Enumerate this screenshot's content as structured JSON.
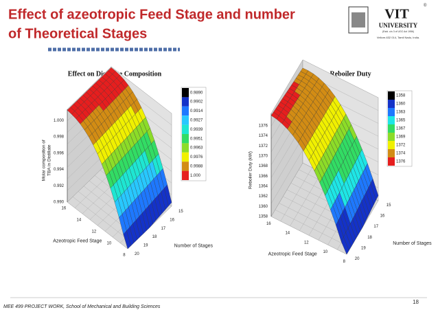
{
  "header": {
    "title_lines": [
      "Effect of azeotropic Feed Stage and number",
      "of Theoretical Stages"
    ],
    "logo": {
      "name": "VIT",
      "subtitle": "UNIVERSITY",
      "established": "(Estd. u/s 3 of UGC Act 1956)",
      "address": "Vellore-632 014, Tamil Nadu, India."
    }
  },
  "plots": [
    {
      "title": "Effect on Distillate Composition",
      "z_axis_label_lines": [
        "Molar composition of",
        "TBA in Distillate"
      ],
      "z_ticks": [
        "1.000",
        "0.998",
        "0.996",
        "0.994",
        "0.992",
        "0.990"
      ],
      "feed_axis_label": "Azeotropic Feed Stage",
      "feed_ticks": [
        "16",
        "14",
        "12",
        "10",
        "8"
      ],
      "stages_axis_label": "Number of Stages",
      "stages_ticks": [
        "15",
        "16",
        "17",
        "18",
        "19",
        "20"
      ],
      "legend": [
        {
          "label": "0.9890",
          "color": "#000000"
        },
        {
          "label": "0.9902",
          "color": "#1432c8"
        },
        {
          "label": "0.9914",
          "color": "#1e78ff"
        },
        {
          "label": "0.9927",
          "color": "#28c8ff"
        },
        {
          "label": "0.9939",
          "color": "#1ee6d2"
        },
        {
          "label": "0.9951",
          "color": "#32dc64"
        },
        {
          "label": "0.9963",
          "color": "#8cdc28"
        },
        {
          "label": "0.9976",
          "color": "#f0f000"
        },
        {
          "label": "0.9988",
          "color": "#d28c14"
        },
        {
          "label": "1.000",
          "color": "#e61e1e"
        }
      ]
    },
    {
      "title": "Effect on Reboiler Duty",
      "z_axis_label_lines": [
        "Reboiler Duty (kW)"
      ],
      "z_ticks": [
        "1376",
        "1374",
        "1372",
        "1370",
        "1368",
        "1366",
        "1364",
        "1362",
        "1360",
        "1358"
      ],
      "feed_axis_label": "Azeotropic Feed Stage",
      "feed_ticks": [
        "16",
        "14",
        "12",
        "10",
        "8"
      ],
      "stages_axis_label": "Number of Stages",
      "stages_ticks": [
        "15",
        "16",
        "17",
        "18",
        "19",
        "20"
      ],
      "legend": [
        {
          "label": "1358",
          "color": "#000000"
        },
        {
          "label": "1360",
          "color": "#1432c8"
        },
        {
          "label": "1363",
          "color": "#1e78ff"
        },
        {
          "label": "1365",
          "color": "#1ee6e6"
        },
        {
          "label": "1367",
          "color": "#32dc64"
        },
        {
          "label": "1369",
          "color": "#8cdc28"
        },
        {
          "label": "1372",
          "color": "#f0f000"
        },
        {
          "label": "1374",
          "color": "#d28c14"
        },
        {
          "label": "1376",
          "color": "#e61e1e"
        }
      ]
    }
  ],
  "footer": {
    "text": "MEE 499 PROJECT WORK, School of Mechanical and Building Sciences",
    "page_number": "18"
  }
}
